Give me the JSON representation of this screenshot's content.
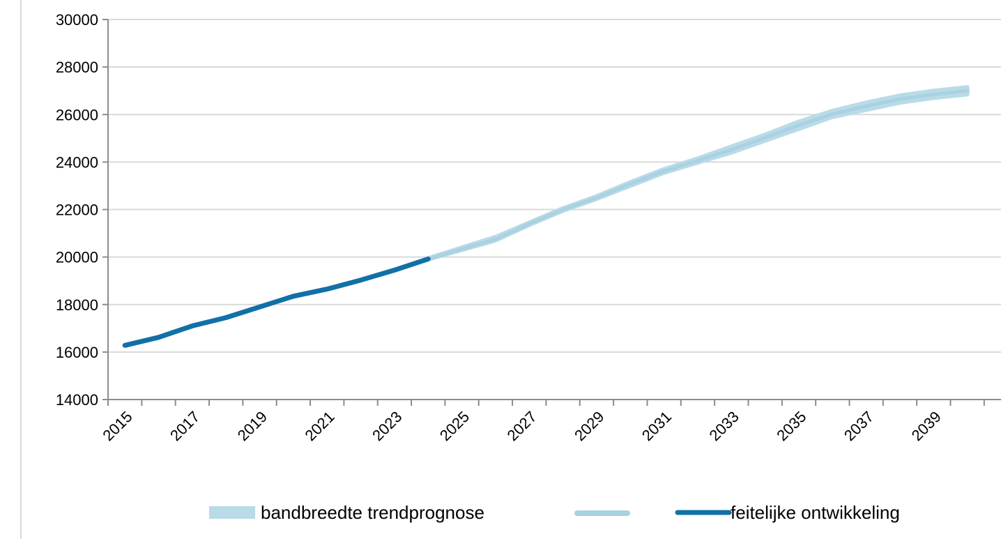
{
  "chart_data": {
    "type": "line",
    "x_ticks": [
      "2015",
      "2017",
      "2019",
      "2021",
      "2023",
      "2025",
      "2027",
      "2029",
      "2031",
      "2033",
      "2035",
      "2037",
      "2039"
    ],
    "y_ticks": [
      "14000",
      "16000",
      "18000",
      "20000",
      "22000",
      "24000",
      "26000",
      "28000",
      "30000"
    ],
    "xlim": [
      2014.5,
      2041
    ],
    "ylim": [
      14000,
      30000
    ],
    "grid": "horizontal",
    "legend_position": "bottom",
    "series": [
      {
        "name": "bandbreedte trendprognose",
        "kind": "band",
        "color": "#b9dbe8",
        "x": [
          2024,
          2025,
          2026,
          2027,
          2028,
          2029,
          2030,
          2031,
          2032,
          2033,
          2034,
          2035,
          2036,
          2037,
          2038,
          2039,
          2040
        ],
        "low": [
          19900,
          20300,
          20700,
          21350,
          21950,
          22450,
          23000,
          23550,
          23980,
          24400,
          24900,
          25400,
          25900,
          26200,
          26500,
          26700,
          26850
        ],
        "high": [
          19950,
          20400,
          20850,
          21450,
          22050,
          22560,
          23150,
          23700,
          24150,
          24650,
          25150,
          25700,
          26150,
          26500,
          26800,
          27000,
          27150
        ]
      },
      {
        "name": "",
        "kind": "line",
        "color": "#a9d1e2",
        "x": [
          2024,
          2025,
          2026,
          2027,
          2028,
          2029,
          2030,
          2031,
          2032,
          2033,
          2034,
          2035,
          2036,
          2037,
          2038,
          2039,
          2040
        ],
        "values": [
          19920,
          20330,
          20750,
          21400,
          22000,
          22500,
          23080,
          23620,
          24060,
          24520,
          25030,
          25550,
          26020,
          26350,
          26650,
          26850,
          27000
        ]
      },
      {
        "name": "feitelijke ontwikkeling",
        "kind": "line",
        "color": "#1170a8",
        "x": [
          2015,
          2016,
          2017,
          2018,
          2019,
          2020,
          2021,
          2022,
          2023,
          2024
        ],
        "values": [
          16280,
          16620,
          17100,
          17450,
          17900,
          18350,
          18650,
          19030,
          19450,
          19920
        ]
      }
    ]
  }
}
